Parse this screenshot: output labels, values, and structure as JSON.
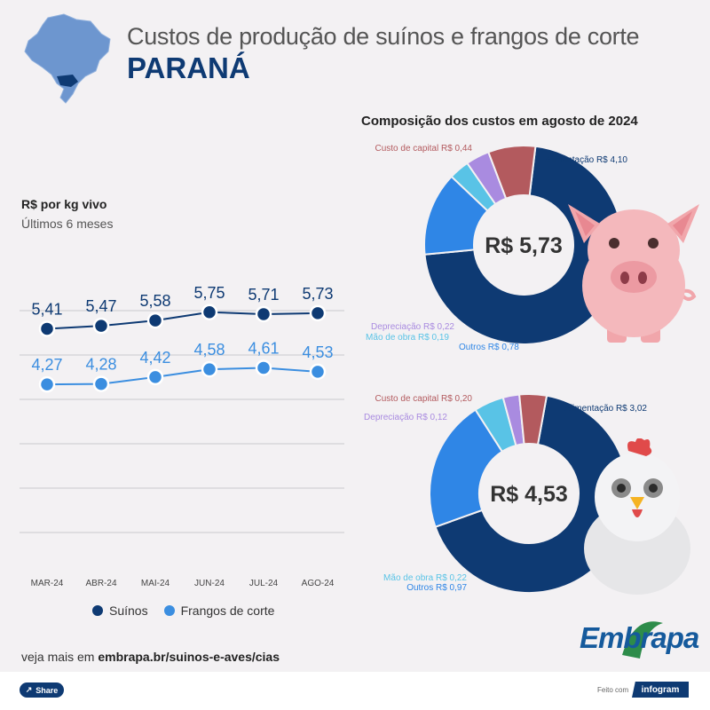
{
  "header": {
    "title": "Custos de produção de suínos e frangos de corte",
    "subtitle": "PARANÁ"
  },
  "line_panel": {
    "heading": "R$ por kg vivo",
    "subheading": "Últimos 6 meses"
  },
  "composition": {
    "title": "Composição dos custos em agosto de 2024"
  },
  "legend": {
    "suinos": "Suínos",
    "frangos": "Frangos de corte"
  },
  "footer": {
    "prefix": "veja mais em ",
    "link": "embrapa.br/suinos-e-aves/cias",
    "share_label": "Share",
    "made_with": "Feito com",
    "infogram": "infogram",
    "logo": "Embrapa"
  },
  "colors": {
    "suinos": "#0e3a73",
    "frangos": "#3b8ee0",
    "alimentacao": "#0e3a73",
    "custo_capital": "#b35a5e",
    "depreciacao": "#a98be0",
    "mao_de_obra": "#59c3e6",
    "outros": "#2f86e6"
  },
  "chart_data": [
    {
      "type": "line",
      "categories": [
        "MAR-24",
        "ABR-24",
        "MAI-24",
        "JUN-24",
        "JUL-24",
        "AGO-24"
      ],
      "series": [
        {
          "name": "Suínos",
          "values": [
            5.41,
            5.47,
            5.58,
            5.75,
            5.71,
            5.73
          ],
          "labels": [
            "5,41",
            "5,47",
            "5,58",
            "5,75",
            "5,71",
            "5,73"
          ]
        },
        {
          "name": "Frangos de corte",
          "values": [
            4.27,
            4.28,
            4.42,
            4.58,
            4.61,
            4.53
          ],
          "labels": [
            "4,27",
            "4,28",
            "4,42",
            "4,58",
            "4,61",
            "4,53"
          ]
        }
      ],
      "xlabel": "",
      "ylabel": "",
      "ylim": [
        0,
        6
      ],
      "grid": true,
      "legend": "bottom"
    },
    {
      "type": "pie",
      "name": "Suínos",
      "total_label": "R$ 5,73",
      "donut": true,
      "slices": [
        {
          "key": "alimentacao",
          "label": "Alimentação R$ 4,10",
          "value": 4.1
        },
        {
          "key": "outros",
          "label": "Outros R$ 0,78",
          "value": 0.78
        },
        {
          "key": "mao_de_obra",
          "label": "Mão de obra R$ 0,19",
          "value": 0.19
        },
        {
          "key": "depreciacao",
          "label": "Depreciação R$ 0,22",
          "value": 0.22
        },
        {
          "key": "custo_capital",
          "label": "Custo de capital R$ 0,44",
          "value": 0.44
        }
      ]
    },
    {
      "type": "pie",
      "name": "Frangos de corte",
      "total_label": "R$ 4,53",
      "donut": true,
      "slices": [
        {
          "key": "alimentacao",
          "label": "Alimentação R$ 3,02",
          "value": 3.02
        },
        {
          "key": "outros",
          "label": "Outros R$ 0,97",
          "value": 0.97
        },
        {
          "key": "mao_de_obra",
          "label": "Mão de obra R$ 0,22",
          "value": 0.22
        },
        {
          "key": "depreciacao",
          "label": "Depreciação R$ 0,12",
          "value": 0.12
        },
        {
          "key": "custo_capital",
          "label": "Custo de capital R$ 0,20",
          "value": 0.2
        }
      ]
    }
  ]
}
